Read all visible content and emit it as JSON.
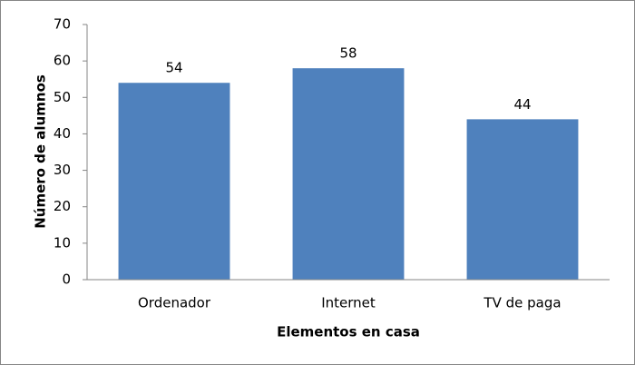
{
  "chart_data": {
    "type": "bar",
    "x_label": "Elementos en casa",
    "y_label": "Número de alumnos",
    "categories": [
      "Ordenador",
      "Internet",
      "TV de paga"
    ],
    "values": [
      54,
      58,
      44
    ],
    "color": "#4f81bd",
    "ylim": [
      0,
      70
    ],
    "yticks": [
      0,
      10,
      20,
      30,
      40,
      50,
      60,
      70
    ],
    "grid": false,
    "data_labels": true
  }
}
